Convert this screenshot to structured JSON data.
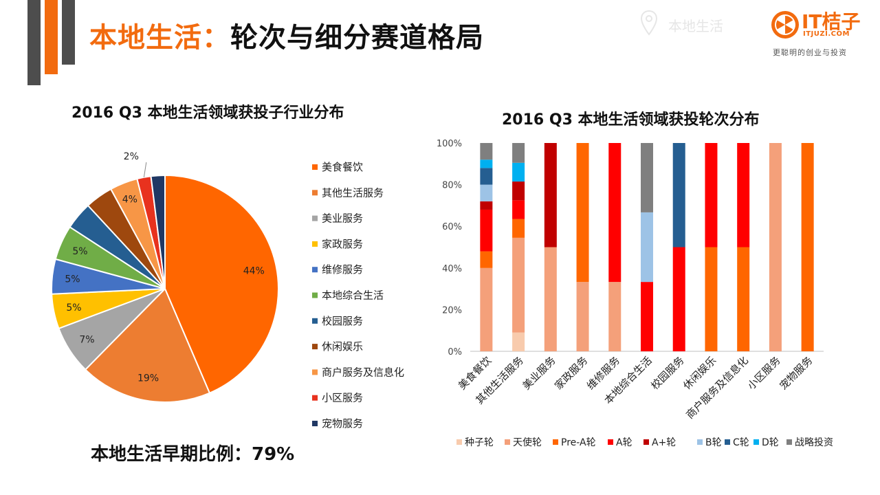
{
  "header": {
    "title_highlight": "本地生活：",
    "title_rest": "轮次与细分赛道格局",
    "location_label": "本地生活",
    "logo_text": "IT桔子",
    "logo_sub": "ITJUZI.COM",
    "logo_slogan": "更聪明的创业与投资"
  },
  "colors": {
    "accent": "#f26b0f",
    "deco_dark": "#4d4d4d"
  },
  "footer": {
    "text": "本地生活早期比例：79%"
  },
  "chart_data": [
    {
      "type": "pie",
      "title": "2016 Q3 本地生活领域获投子行业分布",
      "legend_position": "right",
      "slices": [
        {
          "name": "美食餐饮",
          "value": 44,
          "label": "44%",
          "color": "#ff6600"
        },
        {
          "name": "其他生活服务",
          "value": 19,
          "label": "19%",
          "color": "#ed7d31"
        },
        {
          "name": "美业服务",
          "value": 7,
          "label": "7%",
          "color": "#a5a5a5"
        },
        {
          "name": "家政服务",
          "value": 5,
          "label": "5%",
          "color": "#ffc000"
        },
        {
          "name": "维修服务",
          "value": 5,
          "label": "5%",
          "color": "#4472c4"
        },
        {
          "name": "本地综合生活",
          "value": 5,
          "label": "5%",
          "color": "#70ad47"
        },
        {
          "name": "校园服务",
          "value": 4,
          "label": "",
          "color": "#255e91"
        },
        {
          "name": "休闲娱乐",
          "value": 4,
          "label": "",
          "color": "#9e480e"
        },
        {
          "name": "商户服务及信息化",
          "value": 4,
          "label": "4%",
          "color": "#f79646"
        },
        {
          "name": "小区服务",
          "value": 2,
          "label": "2%",
          "color": "#e8321e"
        },
        {
          "name": "宠物服务",
          "value": 2,
          "label": "",
          "color": "#203864"
        }
      ]
    },
    {
      "type": "bar",
      "stacked": "percent",
      "title": "2016 Q3 本地生活领域获投轮次分布",
      "categories": [
        "美食餐饮",
        "其他生活服务",
        "美业服务",
        "家政服务",
        "维修服务",
        "本地综合生活",
        "校园服务",
        "休闲娱乐",
        "商户服务及信息化",
        "小区服务",
        "宠物服务"
      ],
      "ylim": [
        0,
        100
      ],
      "yticks": [
        "0%",
        "20%",
        "40%",
        "60%",
        "80%",
        "100%"
      ],
      "legend_position": "bottom",
      "series": [
        {
          "name": "种子轮",
          "color": "#f8cbad",
          "values": [
            0,
            9,
            0,
            0,
            0,
            0,
            0,
            0,
            0,
            0,
            0
          ]
        },
        {
          "name": "天使轮",
          "color": "#f4a07a",
          "values": [
            40,
            45.5,
            50,
            33.3,
            33.3,
            0,
            0,
            0,
            0,
            100,
            0
          ]
        },
        {
          "name": "Pre-A轮",
          "color": "#ff6600",
          "values": [
            8,
            9,
            0,
            66.7,
            0,
            0,
            0,
            50,
            50,
            0,
            100
          ]
        },
        {
          "name": "A轮",
          "color": "#ff0000",
          "values": [
            20,
            9,
            0,
            0,
            66.7,
            33.3,
            50,
            50,
            50,
            0,
            0
          ]
        },
        {
          "name": "A+轮",
          "color": "#c00000",
          "values": [
            4,
            9,
            50,
            0,
            0,
            0,
            0,
            0,
            0,
            0,
            0
          ]
        },
        {
          "name": "B轮",
          "color": "#9dc3e6",
          "values": [
            8,
            0,
            0,
            0,
            0,
            33.4,
            0,
            0,
            0,
            0,
            0
          ]
        },
        {
          "name": "C轮",
          "color": "#255e91",
          "values": [
            8,
            0,
            0,
            0,
            0,
            0,
            50,
            0,
            0,
            0,
            0
          ]
        },
        {
          "name": "D轮",
          "color": "#00b0f0",
          "values": [
            4,
            9,
            0,
            0,
            0,
            0,
            0,
            0,
            0,
            0,
            0
          ]
        },
        {
          "name": "战略投资",
          "color": "#7f7f7f",
          "values": [
            8,
            9.5,
            0,
            0,
            0,
            33.3,
            0,
            0,
            0,
            0,
            0
          ]
        }
      ]
    }
  ]
}
